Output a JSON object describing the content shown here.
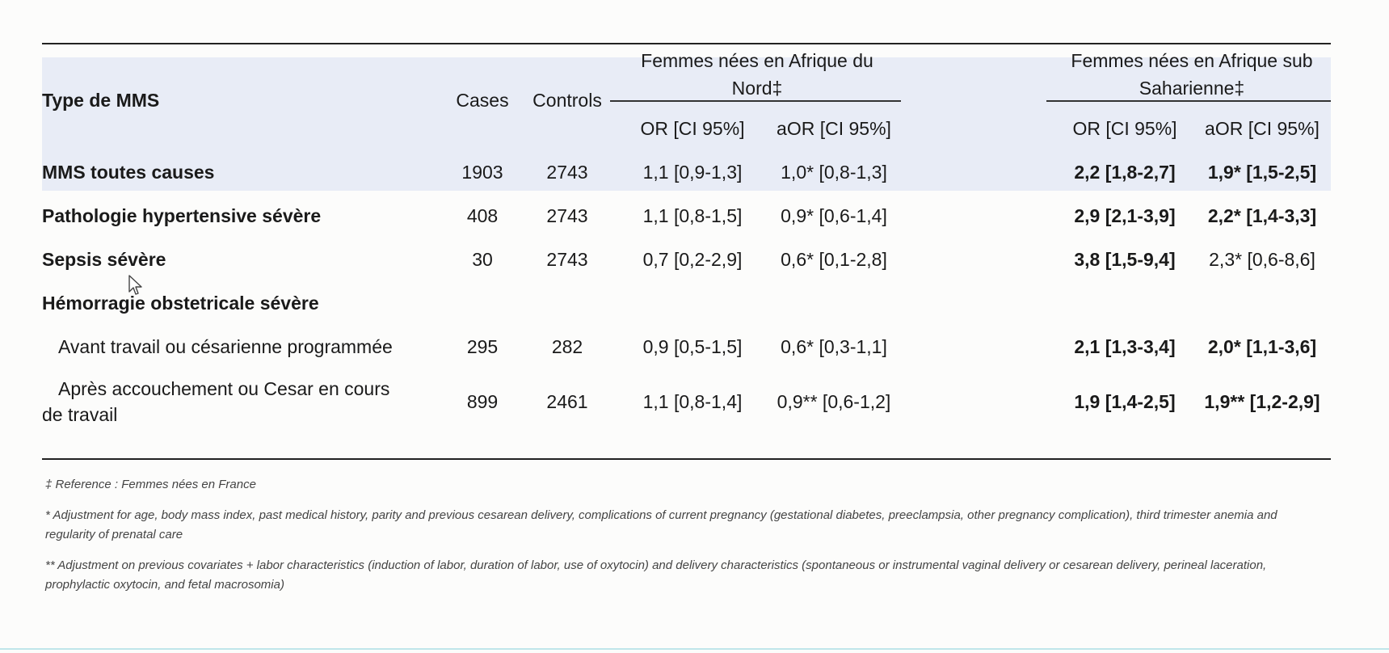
{
  "header": {
    "type_label": "Type de MMS",
    "cases_label": "Cases",
    "controls_label": "Controls",
    "group1_label": "Femmes nées en Afrique du Nord‡",
    "group2_label": "Femmes nées en Afrique sub Saharienne‡",
    "or_label": "OR [CI 95%]",
    "aor_label": "aOR [CI 95%]"
  },
  "rows": [
    {
      "label": "MMS toutes causes",
      "cases": "1903",
      "controls": "2743",
      "or_nord": "1,1 [0,9-1,3]",
      "aor_nord": "1,0* [0,8-1,3]",
      "or_sub": "2,2 [1,8-2,7]",
      "aor_sub": "1,9* [1,5-2,5]"
    },
    {
      "label": "Pathologie hypertensive sévère",
      "cases": "408",
      "controls": "2743",
      "or_nord": "1,1 [0,8-1,5]",
      "aor_nord": "0,9* [0,6-1,4]",
      "or_sub": "2,9 [2,1-3,9]",
      "aor_sub": "2,2* [1,4-3,3]"
    },
    {
      "label": "Sepsis sévère",
      "cases": "30",
      "controls": "2743",
      "or_nord": "0,7 [0,2-2,9]",
      "aor_nord": "0,6* [0,1-2,8]",
      "or_sub": "3,8 [1,5-9,4]",
      "aor_sub": "2,3* [0,6-8,6]"
    },
    {
      "label": "Hémorragie obstetricale sévère"
    },
    {
      "label": "Avant travail ou césarienne  programmée",
      "cases": "295",
      "controls": "282",
      "or_nord": "0,9 [0,5-1,5]",
      "aor_nord": "0,6* [0,3-1,1]",
      "or_sub": "2,1 [1,3-3,4]",
      "aor_sub": "2,0* [1,1-3,6]"
    },
    {
      "label_line1": "Après accouchement  ou Cesar en cours",
      "label_line2": "de travail",
      "cases": "899",
      "controls": "2461",
      "or_nord": "1,1 [0,8-1,4]",
      "aor_nord": "0,9** [0,6-1,2]",
      "or_sub": "1,9 [1,4-2,5]",
      "aor_sub": "1,9** [1,2-2,9]"
    }
  ],
  "footnotes": {
    "ref": "‡ Reference : Femmes nées en France",
    "adj1": "* Adjustment for age, body mass index, past medical history, parity and previous cesarean delivery, complications of current pregnancy (gestational diabetes, preeclampsia, other pregnancy complication), third trimester anemia and regularity of prenatal care",
    "adj2": "** Adjustment on previous covariates + labor characteristics (induction of labor, duration of labor, use of oxytocin) and delivery characteristics (spontaneous or instrumental vaginal delivery or cesarean delivery, perineal laceration, prophylactic oxytocin, and fetal macrosomia)"
  }
}
